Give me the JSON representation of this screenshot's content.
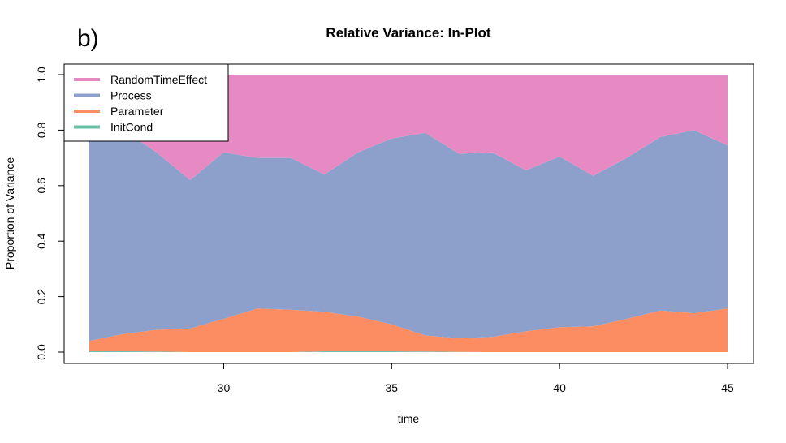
{
  "panel_label": "b)",
  "chart_data": {
    "type": "area",
    "stacked": true,
    "normalized": true,
    "title": "Relative Variance: In-Plot",
    "xlabel": "time",
    "ylabel": "Proportion of Variance",
    "xlim": [
      26,
      45
    ],
    "ylim": [
      0,
      1
    ],
    "x_ticks": [
      "30",
      "35",
      "40",
      "45"
    ],
    "y_ticks": [
      "0.0",
      "0.2",
      "0.4",
      "0.6",
      "0.8",
      "1.0"
    ],
    "grid": false,
    "legend_position": "top-left",
    "x": [
      26,
      27,
      28,
      29,
      30,
      31,
      32,
      33,
      34,
      35,
      36,
      37,
      38,
      39,
      40,
      41,
      42,
      43,
      44,
      45
    ],
    "series": [
      {
        "name": "InitCond",
        "color": "#66C2A5",
        "values": [
          0.005,
          0.003,
          0.002,
          0.0,
          0.0,
          0.0,
          0.0,
          0.003,
          0.003,
          0.003,
          0.002,
          0.001,
          0.0,
          0.0,
          0.0,
          0.0,
          0.0,
          0.0,
          0.0,
          0.0
        ]
      },
      {
        "name": "Parameter",
        "color": "#FC8D62",
        "values": [
          0.035,
          0.062,
          0.078,
          0.085,
          0.12,
          0.157,
          0.153,
          0.142,
          0.125,
          0.097,
          0.058,
          0.049,
          0.055,
          0.075,
          0.09,
          0.093,
          0.12,
          0.15,
          0.14,
          0.157
        ]
      },
      {
        "name": "Process",
        "color": "#8DA0CB",
        "values": [
          0.76,
          0.735,
          0.64,
          0.535,
          0.6,
          0.543,
          0.547,
          0.495,
          0.592,
          0.67,
          0.73,
          0.665,
          0.665,
          0.58,
          0.615,
          0.542,
          0.58,
          0.625,
          0.66,
          0.588
        ]
      },
      {
        "name": "RandomTimeEffect",
        "color": "#E78AC3",
        "values": [
          0.2,
          0.2,
          0.28,
          0.38,
          0.28,
          0.3,
          0.3,
          0.36,
          0.28,
          0.23,
          0.21,
          0.285,
          0.28,
          0.345,
          0.295,
          0.365,
          0.3,
          0.225,
          0.2,
          0.255
        ]
      }
    ],
    "legend_order": [
      "RandomTimeEffect",
      "Process",
      "Parameter",
      "InitCond"
    ]
  }
}
